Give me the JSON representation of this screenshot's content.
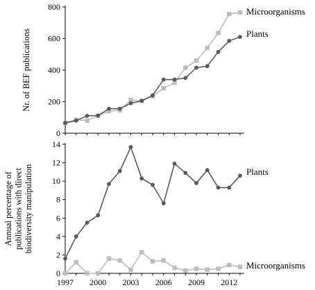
{
  "chart_data": [
    {
      "type": "line",
      "ylabel": "Nr. of  BEF publications",
      "xlabel": "",
      "x": [
        1997,
        1998,
        1999,
        2000,
        2001,
        2002,
        2003,
        2004,
        2005,
        2006,
        2007,
        2008,
        2009,
        2010,
        2011,
        2012,
        2013
      ],
      "xticks": [
        "1997",
        "2000",
        "2003",
        "2006",
        "2009",
        "2012"
      ],
      "ylim": [
        0,
        800
      ],
      "yticks": [
        "0",
        "200",
        "400",
        "600",
        "800"
      ],
      "grid": false,
      "series": [
        {
          "name": "Microorganisms",
          "color": "#bdbdbd",
          "marker": "square",
          "values": [
            65,
            85,
            80,
            110,
            140,
            145,
            210,
            205,
            235,
            285,
            320,
            415,
            460,
            540,
            635,
            755,
            765
          ]
        },
        {
          "name": "Plants",
          "color": "#595959",
          "marker": "circle",
          "values": [
            65,
            80,
            110,
            112,
            155,
            155,
            190,
            205,
            240,
            340,
            340,
            350,
            415,
            425,
            515,
            585,
            610
          ]
        }
      ]
    },
    {
      "type": "line",
      "ylabel": "Annual percentage of publications with direct biodiversity  manipulation",
      "xlabel": "",
      "x": [
        1997,
        1998,
        1999,
        2000,
        2001,
        2002,
        2003,
        2004,
        2005,
        2006,
        2007,
        2008,
        2009,
        2010,
        2011,
        2012,
        2013
      ],
      "xticks": [
        "1997",
        "2000",
        "2003",
        "2006",
        "2009",
        "2012"
      ],
      "ylim": [
        0,
        14
      ],
      "yticks": [
        "0",
        "2",
        "4",
        "6",
        "8",
        "10",
        "12",
        "14"
      ],
      "grid": false,
      "series": [
        {
          "name": "Plants",
          "color": "#595959",
          "marker": "circle",
          "values": [
            1.6,
            4.0,
            5.5,
            6.3,
            9.7,
            11.1,
            13.7,
            10.3,
            9.6,
            7.6,
            11.9,
            10.9,
            9.8,
            11.2,
            9.3,
            9.3,
            10.6
          ]
        },
        {
          "name": "Microorganisms",
          "color": "#bdbdbd",
          "marker": "square",
          "values": [
            0.0,
            1.2,
            0.0,
            0.0,
            1.6,
            1.4,
            0.4,
            2.3,
            1.3,
            1.4,
            0.6,
            0.3,
            0.5,
            0.4,
            0.5,
            0.9,
            0.7
          ]
        }
      ]
    }
  ]
}
